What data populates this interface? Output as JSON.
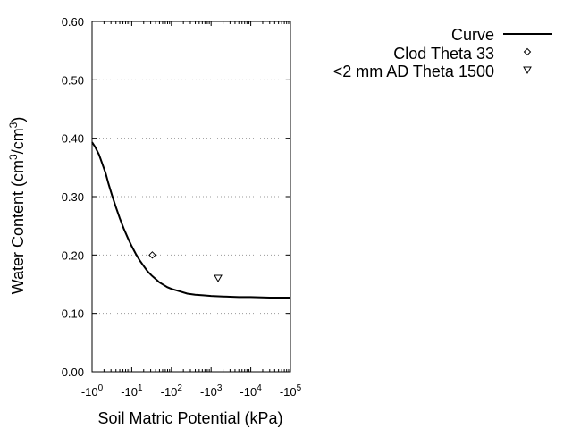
{
  "chart_data": {
    "type": "line",
    "title": "",
    "xlabel": "Soil Matric Potential (kPa)",
    "ylabel_main": "Water Content (cm",
    "ylabel_sup1": "3",
    "ylabel_mid": "/cm",
    "ylabel_sup2": "3",
    "ylabel_end": ")",
    "x_scale": "log",
    "x_axis_sign": "negative",
    "xlim": [
      1,
      100000
    ],
    "ylim": [
      0,
      0.6
    ],
    "grid": "horizontal-dotted",
    "legend_position": "top-right",
    "x_ticks": [
      {
        "value": 1,
        "base": "-10",
        "exp": "0"
      },
      {
        "value": 10,
        "base": "-10",
        "exp": "1"
      },
      {
        "value": 100,
        "base": "-10",
        "exp": "2"
      },
      {
        "value": 1000,
        "base": "-10",
        "exp": "3"
      },
      {
        "value": 10000,
        "base": "-10",
        "exp": "4"
      },
      {
        "value": 100000,
        "base": "-10",
        "exp": "5"
      }
    ],
    "y_ticks": [
      {
        "value": 0.0,
        "label": "0.00"
      },
      {
        "value": 0.1,
        "label": "0.10"
      },
      {
        "value": 0.2,
        "label": "0.20"
      },
      {
        "value": 0.3,
        "label": "0.30"
      },
      {
        "value": 0.4,
        "label": "0.40"
      },
      {
        "value": 0.5,
        "label": "0.50"
      },
      {
        "value": 0.6,
        "label": "0.60"
      }
    ],
    "series": [
      {
        "name": "Curve",
        "kind": "line",
        "color": "#000000",
        "x": [
          1,
          1.2,
          1.5,
          1.8,
          2.2,
          2.6,
          3.2,
          4,
          5,
          6.3,
          8,
          10,
          12.6,
          15.8,
          20,
          25,
          31.6,
          40,
          50,
          63,
          79,
          100,
          158,
          251,
          398,
          631,
          1000,
          2000,
          5000,
          10000,
          30000,
          100000
        ],
        "y": [
          0.393,
          0.385,
          0.372,
          0.357,
          0.34,
          0.322,
          0.302,
          0.282,
          0.263,
          0.245,
          0.229,
          0.215,
          0.202,
          0.191,
          0.181,
          0.172,
          0.165,
          0.159,
          0.153,
          0.149,
          0.145,
          0.142,
          0.138,
          0.134,
          0.132,
          0.131,
          0.13,
          0.129,
          0.128,
          0.128,
          0.127,
          0.127
        ]
      },
      {
        "name": "Clod Theta 33",
        "kind": "scatter",
        "marker": "diamond",
        "color": "#000000",
        "x": [
          33
        ],
        "y": [
          0.2
        ]
      },
      {
        "name": "<2 mm AD Theta 1500",
        "kind": "scatter",
        "marker": "triangle-down",
        "color": "#000000",
        "x": [
          1500
        ],
        "y": [
          0.16
        ]
      }
    ]
  }
}
